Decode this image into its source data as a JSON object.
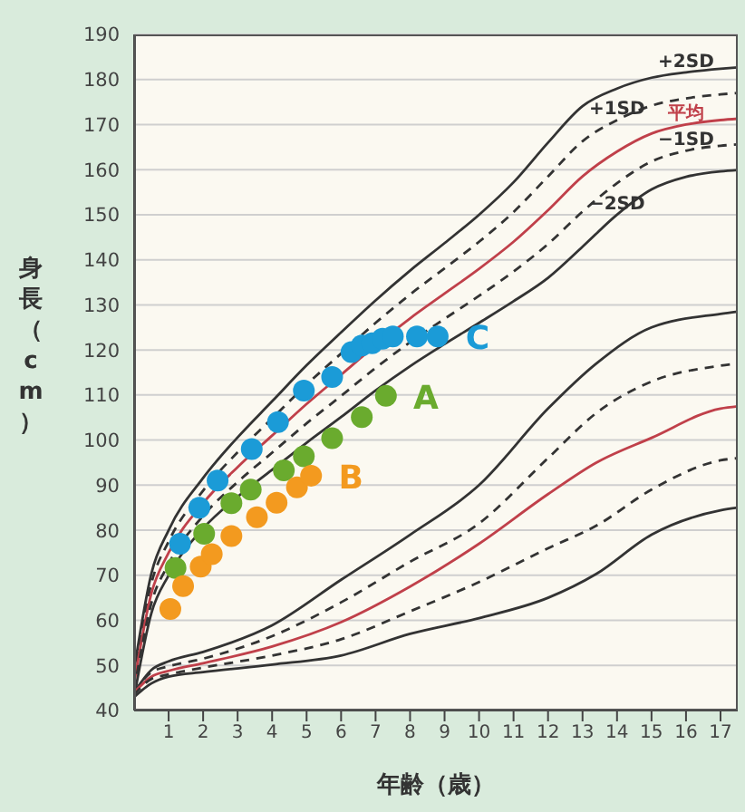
{
  "chart_data": {
    "type": "line",
    "xlabel": "年齢（歳）",
    "ylabel": "身長（cm）",
    "xlim": [
      0,
      17.5
    ],
    "xticks": [
      1,
      2,
      3,
      4,
      5,
      6,
      7,
      8,
      9,
      10,
      11,
      12,
      13,
      14,
      15,
      16,
      17
    ],
    "ylim": [
      40,
      190
    ],
    "yticks": [
      40,
      50,
      60,
      70,
      80,
      90,
      100,
      110,
      120,
      130,
      140,
      150,
      160,
      170,
      180,
      190
    ],
    "grid": "y",
    "marker": "none",
    "series": [
      {
        "name": "+2SD",
        "color": "#333333",
        "line_style": "solid",
        "x": [
          0,
          0.5,
          1,
          2,
          3,
          4,
          5,
          6,
          7,
          8,
          9,
          10,
          11,
          12,
          13,
          14,
          15,
          16,
          17,
          17.5
        ],
        "values": [
          49,
          70.4,
          80,
          91.6,
          100.6,
          108.6,
          116.6,
          123.9,
          131,
          137.6,
          143.7,
          150,
          157.2,
          166,
          174.1,
          178,
          180.4,
          181.6,
          182.4,
          182.7
        ]
      },
      {
        "name": "+1SD",
        "color": "#333333",
        "line_style": "dashed",
        "x": [
          0,
          0.5,
          1,
          2,
          3,
          4,
          5,
          6,
          7,
          8,
          9,
          10,
          11,
          12,
          13,
          14,
          15,
          16,
          17,
          17.5
        ],
        "values": [
          47.5,
          68.2,
          77.5,
          88.8,
          97.3,
          104.8,
          112.3,
          119.2,
          126,
          132.3,
          138.1,
          144,
          150.6,
          158.5,
          166.3,
          171,
          174.2,
          175.8,
          176.7,
          177
        ]
      },
      {
        "name": "平均",
        "color": "#c0404a",
        "line_style": "solid",
        "x": [
          0,
          0.5,
          1,
          2,
          3,
          4,
          5,
          6,
          7,
          8,
          9,
          10,
          11,
          12,
          13,
          14,
          15,
          16,
          17,
          17.5
        ],
        "values": [
          46,
          66,
          75,
          86,
          94,
          101,
          108,
          114.5,
          121,
          127,
          132.5,
          138,
          144,
          151,
          158.5,
          164,
          168,
          170,
          171,
          171.3
        ]
      },
      {
        "name": "−1SD",
        "color": "#333333",
        "line_style": "dashed",
        "x": [
          0,
          0.5,
          1,
          2,
          3,
          4,
          5,
          6,
          7,
          8,
          9,
          10,
          11,
          12,
          13,
          14,
          15,
          16,
          17,
          17.5
        ],
        "values": [
          44.5,
          63.8,
          72.5,
          83.2,
          90.7,
          97.2,
          103.7,
          109.8,
          116,
          121.7,
          126.9,
          132,
          137.4,
          143.5,
          150.7,
          157,
          161.8,
          164.2,
          165.3,
          165.6
        ]
      },
      {
        "name": "−2SD",
        "color": "#333333",
        "line_style": "solid",
        "x": [
          0,
          0.5,
          1,
          2,
          3,
          4,
          5,
          6,
          7,
          8,
          9,
          10,
          11,
          12,
          13,
          14,
          15,
          16,
          17,
          17.5
        ],
        "values": [
          43,
          61.6,
          70,
          80.4,
          87.4,
          93.4,
          99.4,
          105.1,
          111,
          116.4,
          121.3,
          126,
          130.8,
          136,
          142.9,
          150,
          155.6,
          158.4,
          159.6,
          159.9
        ]
      },
      {
        "color": "#333333",
        "line_style": "solid",
        "x": [
          0,
          0.5,
          1,
          2,
          4,
          6,
          8,
          10,
          12,
          13.4,
          15,
          17,
          17.5
        ],
        "values": [
          44,
          49,
          50.9,
          53,
          58.9,
          69,
          79,
          90,
          107,
          117,
          125,
          128,
          128.5
        ]
      },
      {
        "color": "#333333",
        "line_style": "dashed",
        "x": [
          0,
          0.5,
          1,
          2,
          4,
          6,
          8,
          10,
          12,
          13.4,
          15,
          17,
          17.5
        ],
        "values": [
          44,
          48.5,
          49.8,
          51.5,
          56.5,
          64,
          73,
          81.5,
          96,
          106,
          113,
          116.5,
          117
        ]
      },
      {
        "color": "#c0404a",
        "line_style": "solid",
        "x": [
          0,
          0.5,
          1,
          2,
          4,
          6,
          8,
          10,
          12,
          13.4,
          15,
          17,
          17.5
        ],
        "values": [
          44,
          47.5,
          48.8,
          50.5,
          54.2,
          59.6,
          67.5,
          77,
          88,
          95,
          100.5,
          107,
          107.5
        ]
      },
      {
        "color": "#333333",
        "line_style": "dashed",
        "x": [
          0,
          0.5,
          1,
          2,
          4,
          6,
          8,
          10,
          12,
          13.4,
          15,
          17,
          17.5
        ],
        "values": [
          43.5,
          47,
          48,
          49.5,
          52.2,
          55.8,
          62,
          68.5,
          76,
          81,
          89,
          95.5,
          96
        ]
      },
      {
        "color": "#333333",
        "line_style": "solid",
        "x": [
          0,
          0.5,
          1,
          2,
          4,
          6,
          8,
          10,
          12,
          13.4,
          15,
          17,
          17.5
        ],
        "values": [
          43,
          46,
          47.5,
          48.5,
          50.2,
          52.2,
          57,
          60.5,
          65,
          70.3,
          79,
          84.4,
          85
        ]
      },
      {
        "name": "C",
        "type": "scatter",
        "marker": "circle",
        "color": "#1b9bd7",
        "x": [
          1.33,
          1.89,
          2.42,
          3.41,
          4.17,
          4.92,
          5.74,
          6.3,
          6.6,
          6.9,
          7.2,
          7.5,
          8.2,
          8.8
        ],
        "values": [
          77,
          85,
          91,
          98,
          104,
          111,
          114,
          119.5,
          121,
          121.5,
          122.5,
          123,
          123,
          123
        ]
      },
      {
        "name": "A",
        "type": "scatter",
        "marker": "circle",
        "color": "#6aab2e",
        "x": [
          1.2,
          2.03,
          2.82,
          3.38,
          4.34,
          4.92,
          5.74,
          6.6,
          7.3
        ],
        "values": [
          71.6,
          79.2,
          86,
          89,
          93.3,
          96.4,
          100.4,
          105.1,
          109.8
        ]
      },
      {
        "name": "B",
        "type": "scatter",
        "marker": "circle",
        "color": "#f39a1f",
        "x": [
          1.05,
          1.42,
          1.93,
          2.25,
          2.82,
          3.56,
          4.13,
          4.72,
          5.13
        ],
        "values": [
          62.5,
          67.6,
          71.9,
          74.7,
          78.7,
          82.9,
          86.1,
          89.5,
          92.1
        ]
      }
    ]
  }
}
